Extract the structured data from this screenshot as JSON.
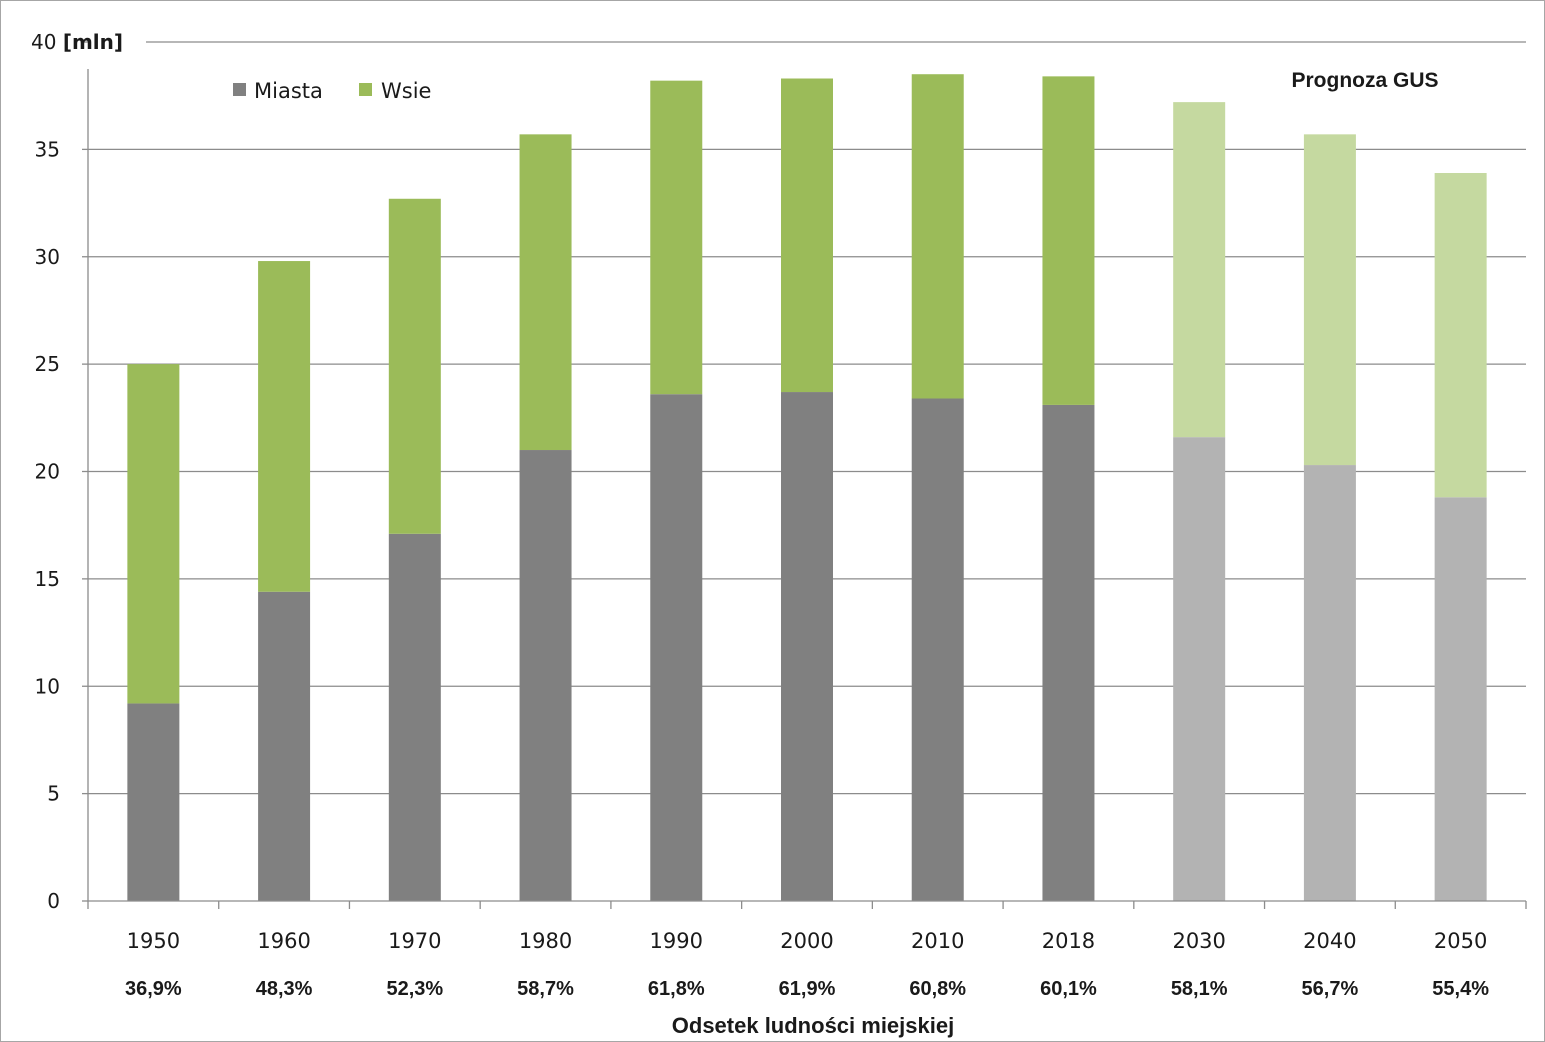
{
  "chart_data": {
    "type": "bar",
    "stacked": true,
    "categories": [
      "1950",
      "1960",
      "1970",
      "1980",
      "1990",
      "2000",
      "2010",
      "2018",
      "2030",
      "2040",
      "2050"
    ],
    "series": [
      {
        "name": "Miasta",
        "values": [
          9.2,
          14.4,
          17.1,
          21.0,
          23.6,
          23.7,
          23.4,
          23.1,
          21.6,
          20.3,
          18.8
        ]
      },
      {
        "name": "Wsie",
        "values": [
          15.8,
          15.4,
          15.6,
          14.7,
          14.6,
          14.6,
          15.1,
          15.3,
          15.6,
          15.4,
          15.1
        ]
      }
    ],
    "urban_share_labels": [
      "36,9%",
      "48,3%",
      "52,3%",
      "58,7%",
      "61,8%",
      "61,9%",
      "60,8%",
      "60,1%",
      "58,1%",
      "56,7%",
      "55,4%"
    ],
    "urban_share_caption": "Odsetek ludności miejskiej",
    "ylim": [
      0,
      40
    ],
    "yticks": [
      0,
      5,
      10,
      15,
      20,
      25,
      30,
      35,
      40
    ],
    "ytick_labels": [
      "0",
      "5",
      "10",
      "15",
      "20",
      "25",
      "30",
      "35",
      "40 [mln]"
    ],
    "forecast_label": "Prognoza GUS",
    "forecast_from_index": 8,
    "legend_position": "top-left",
    "grid": true,
    "colors": {
      "miasta": "#808080",
      "wsie": "#9bbb59",
      "miasta_forecast": "#b3b3b3",
      "wsie_forecast": "#c5d9a0",
      "grid": "#8c8c8c"
    }
  }
}
